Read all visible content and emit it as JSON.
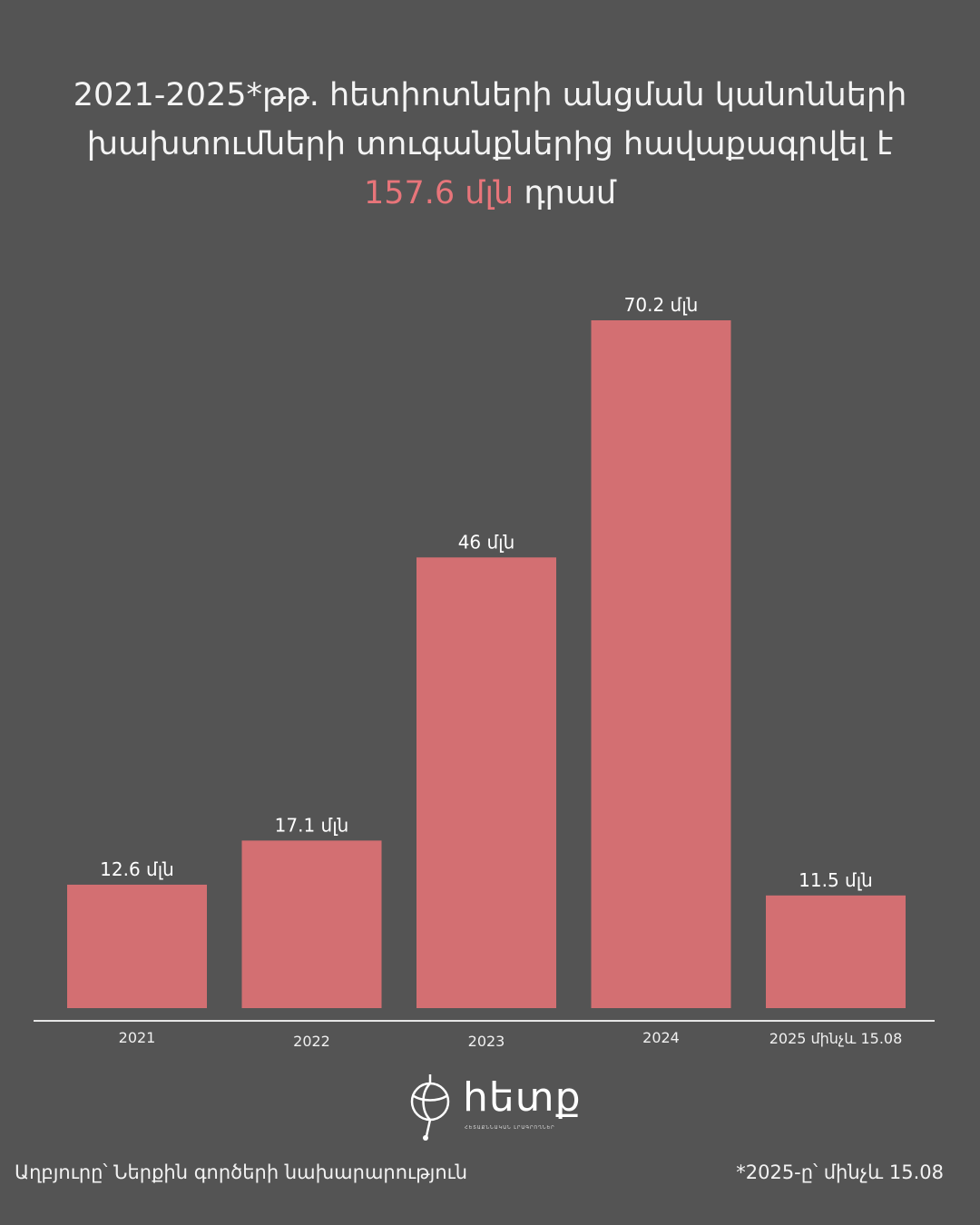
{
  "title": {
    "line1": "2021-2025*թթ. հետիոտների անցման կանոնների",
    "line2": "խախտումների տուգանքներից հավաքագրվել է",
    "highlight": "157.6  մլն",
    "suffix": "դրամ"
  },
  "colors": {
    "background": "#545454",
    "bar": "#d36f72",
    "accent": "#e8757a",
    "text": "#ffffff"
  },
  "chart_data": {
    "type": "bar",
    "categories": [
      "2021",
      "2022",
      "2023",
      "2024",
      "2025 մինչև 15.08"
    ],
    "values": [
      12.6,
      17.1,
      46,
      70.2,
      11.5
    ],
    "data_labels": [
      "12.6 մլն",
      "17.1 մլն",
      "46 մլն",
      "70.2 մլն",
      "11.5 մլն"
    ],
    "title": "",
    "xlabel": "",
    "ylabel": "",
    "ylim": [
      0,
      70.2
    ],
    "grid": false,
    "legend": "none"
  },
  "logo": {
    "word": "հետք",
    "tagline": "ՀԵՏԱՔՆՆԱԿԱՆ ԼՐԱԳՐՈՂՆԵՐ",
    "icon": "globe-pin-logo-icon"
  },
  "footer": {
    "source": "Աղբյուրը՝ Ներքին գործերի նախարարություն",
    "note": "*2025-ը՝ մինչև 15.08"
  }
}
